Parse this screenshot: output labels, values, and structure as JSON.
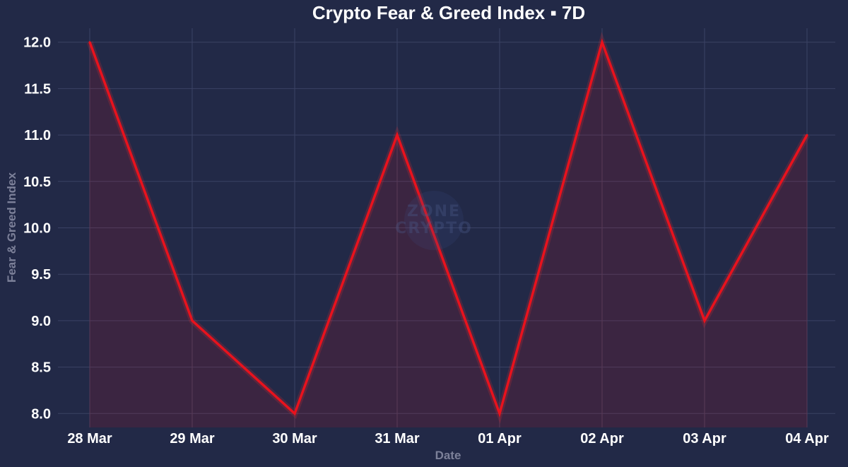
{
  "chart_data": {
    "type": "area",
    "title": "Crypto Fear & Greed Index ▪ 7D",
    "xlabel": "Date",
    "ylabel": "Fear & Greed Index",
    "categories": [
      "28 Mar",
      "29 Mar",
      "30 Mar",
      "31 Mar",
      "01 Apr",
      "02 Apr",
      "03 Apr",
      "04 Apr"
    ],
    "series": [
      {
        "name": "Fear & Greed Index",
        "values": [
          12,
          9,
          8,
          11,
          8,
          12,
          9,
          11
        ],
        "color": "#e8121d"
      }
    ],
    "ylim": [
      7.85,
      12.15
    ],
    "yticks": [
      8.0,
      8.5,
      9.0,
      9.5,
      10.0,
      10.5,
      11.0,
      11.5,
      12.0
    ],
    "ytick_labels": [
      "8.0",
      "8.5",
      "9.0",
      "9.5",
      "10.0",
      "10.5",
      "11.0",
      "11.5",
      "12.0"
    ],
    "grid": true,
    "colors": {
      "background": "#222947",
      "grid": "#3b4264",
      "vertical_grid": "#5a3b55",
      "fill": "#e8121d",
      "axis_text": "#ffffff",
      "axis_title": "#7c8099"
    }
  }
}
